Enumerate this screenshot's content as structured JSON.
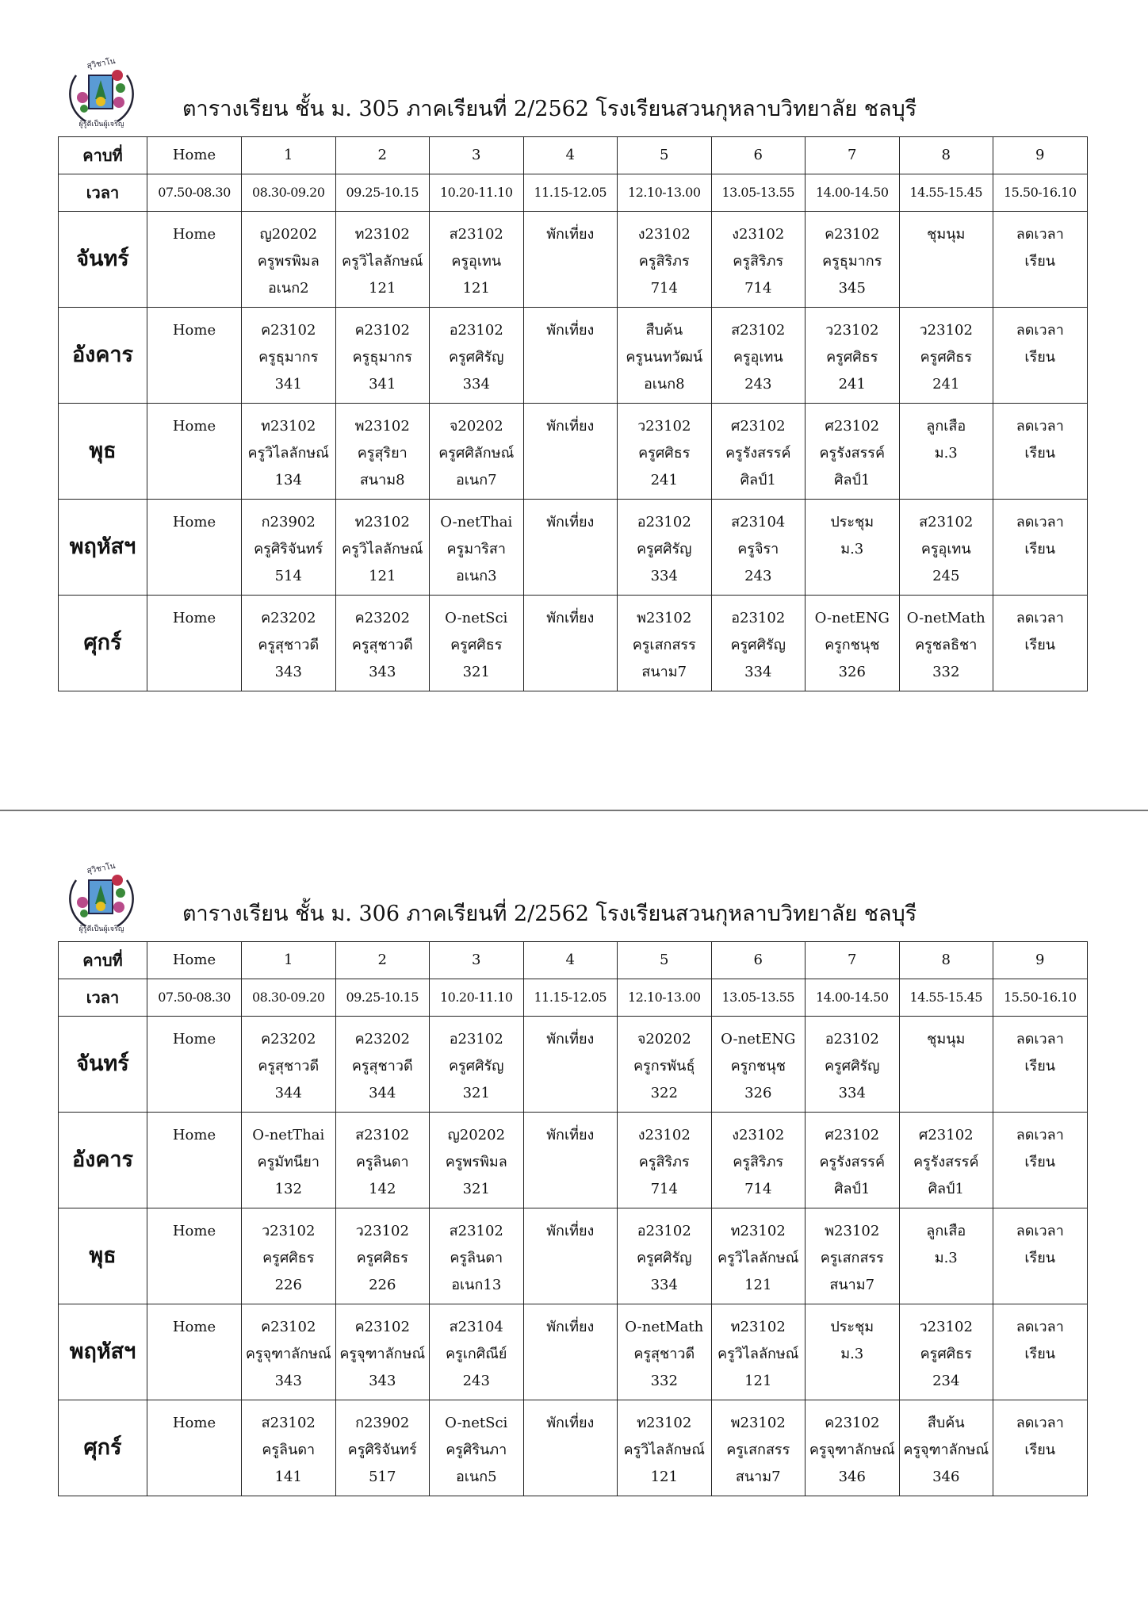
{
  "header_labels": {
    "period": "คาบที่",
    "time": "เวลา"
  },
  "periods": [
    "Home",
    "1",
    "2",
    "3",
    "4",
    "5",
    "6",
    "7",
    "8",
    "9"
  ],
  "times": [
    "07.50-08.30",
    "08.30-09.20",
    "09.25-10.15",
    "10.20-11.10",
    "11.15-12.05",
    "12.10-13.00",
    "13.05-13.55",
    "14.00-14.50",
    "14.55-15.45",
    "15.50-16.10"
  ],
  "logo_text": "สุวิชาโน ภวํ โหติ ผู้รู้ดีเป็นผู้เจริญ",
  "timetables": [
    {
      "title": "ตารางเรียน ชั้น ม. 305 ภาคเรียนที่ 2/2562 โรงเรียนสวนกุหลาบวิทยาลัย ชลบุรี",
      "days": [
        {
          "day": "จันทร์",
          "cells": [
            [
              "Home"
            ],
            [
              "ญ20202",
              "ครูพรพิมล",
              "อเนก2"
            ],
            [
              "ท23102",
              "ครูวิไลลักษณ์",
              "121"
            ],
            [
              "ส23102",
              "ครูอุเทน",
              "121"
            ],
            [
              "พักเที่ยง"
            ],
            [
              "ง23102",
              "ครูสิริภร",
              "714"
            ],
            [
              "ง23102",
              "ครูสิริภร",
              "714"
            ],
            [
              "ค23102",
              "ครูธุมากร",
              "345"
            ],
            [
              "ชุมนุม"
            ],
            [
              "ลดเวลา",
              "เรียน"
            ]
          ]
        },
        {
          "day": "อังคาร",
          "cells": [
            [
              "Home"
            ],
            [
              "ค23102",
              "ครูธุมากร",
              "341"
            ],
            [
              "ค23102",
              "ครูธุมากร",
              "341"
            ],
            [
              "อ23102",
              "ครูศศิรัญ",
              "334"
            ],
            [
              "พักเที่ยง"
            ],
            [
              "สืบค้น",
              "ครูนนทวัฒน์",
              "อเนก8"
            ],
            [
              "ส23102",
              "ครูอุเทน",
              "243"
            ],
            [
              "ว23102",
              "ครูศศิธร",
              "241"
            ],
            [
              "ว23102",
              "ครูศศิธร",
              "241"
            ],
            [
              "ลดเวลา",
              "เรียน"
            ]
          ]
        },
        {
          "day": "พุธ",
          "cells": [
            [
              "Home"
            ],
            [
              "ท23102",
              "ครูวิไลลักษณ์",
              "134"
            ],
            [
              "พ23102",
              "ครูสุริยา",
              "สนาม8"
            ],
            [
              "จ20202",
              "ครูศศิลักษณ์",
              "อเนก7"
            ],
            [
              "พักเที่ยง"
            ],
            [
              "ว23102",
              "ครูศศิธร",
              "241"
            ],
            [
              "ศ23102",
              "ครูรังสรรค์",
              "ศิลป์1"
            ],
            [
              "ศ23102",
              "ครูรังสรรค์",
              "ศิลป์1"
            ],
            [
              "ลูกเสือ",
              "ม.3"
            ],
            [
              "ลดเวลา",
              "เรียน"
            ]
          ]
        },
        {
          "day": "พฤหัสฯ",
          "cells": [
            [
              "Home"
            ],
            [
              "ก23902",
              "ครูศิริจันทร์",
              "514"
            ],
            [
              "ท23102",
              "ครูวิไลลักษณ์",
              "121"
            ],
            [
              "O-netThai",
              "ครูมาริสา",
              "อเนก3"
            ],
            [
              "พักเที่ยง"
            ],
            [
              "อ23102",
              "ครูศศิรัญ",
              "334"
            ],
            [
              "ส23104",
              "ครูจิรา",
              "243"
            ],
            [
              "ประชุม",
              "ม.3"
            ],
            [
              "ส23102",
              "ครูอุเทน",
              "245"
            ],
            [
              "ลดเวลา",
              "เรียน"
            ]
          ]
        },
        {
          "day": "ศุกร์",
          "cells": [
            [
              "Home"
            ],
            [
              "ค23202",
              "ครูสุชาวดี",
              "343"
            ],
            [
              "ค23202",
              "ครูสุชาวดี",
              "343"
            ],
            [
              "O-netSci",
              "ครูศศิธร",
              "321"
            ],
            [
              "พักเที่ยง"
            ],
            [
              "พ23102",
              "ครูเสกสรร",
              "สนาม7"
            ],
            [
              "อ23102",
              "ครูศศิรัญ",
              "334"
            ],
            [
              "O-netENG",
              "ครูกชนุช",
              "326"
            ],
            [
              "O-netMath",
              "ครูชลธิชา",
              "332"
            ],
            [
              "ลดเวลา",
              "เรียน"
            ]
          ]
        }
      ]
    },
    {
      "title": "ตารางเรียน ชั้น ม. 306 ภาคเรียนที่ 2/2562 โรงเรียนสวนกุหลาบวิทยาลัย ชลบุรี",
      "days": [
        {
          "day": "จันทร์",
          "cells": [
            [
              "Home"
            ],
            [
              "ค23202",
              "ครูสุชาวดี",
              "344"
            ],
            [
              "ค23202",
              "ครูสุชาวดี",
              "344"
            ],
            [
              "อ23102",
              "ครูศศิรัญ",
              "321"
            ],
            [
              "พักเที่ยง"
            ],
            [
              "จ20202",
              "ครูกรพันธุ์",
              "322"
            ],
            [
              "O-netENG",
              "ครูกชนุช",
              "326"
            ],
            [
              "อ23102",
              "ครูศศิรัญ",
              "334"
            ],
            [
              "ชุมนุม"
            ],
            [
              "ลดเวลา",
              "เรียน"
            ]
          ]
        },
        {
          "day": "อังคาร",
          "cells": [
            [
              "Home"
            ],
            [
              "O-netThai",
              "ครูมัทนียา",
              "132"
            ],
            [
              "ส23102",
              "ครูลินดา",
              "142"
            ],
            [
              "ญ20202",
              "ครูพรพิมล",
              "321"
            ],
            [
              "พักเที่ยง"
            ],
            [
              "ง23102",
              "ครูสิริภร",
              "714"
            ],
            [
              "ง23102",
              "ครูสิริภร",
              "714"
            ],
            [
              "ศ23102",
              "ครูรังสรรค์",
              "ศิลป์1"
            ],
            [
              "ศ23102",
              "ครูรังสรรค์",
              "ศิลป์1"
            ],
            [
              "ลดเวลา",
              "เรียน"
            ]
          ]
        },
        {
          "day": "พุธ",
          "cells": [
            [
              "Home"
            ],
            [
              "ว23102",
              "ครูศศิธร",
              "226"
            ],
            [
              "ว23102",
              "ครูศศิธร",
              "226"
            ],
            [
              "ส23102",
              "ครูลินดา",
              "อเนก13"
            ],
            [
              "พักเที่ยง"
            ],
            [
              "อ23102",
              "ครูศศิรัญ",
              "334"
            ],
            [
              "ท23102",
              "ครูวิไลลักษณ์",
              "121"
            ],
            [
              "พ23102",
              "ครูเสกสรร",
              "สนาม7"
            ],
            [
              "ลูกเสือ",
              "ม.3"
            ],
            [
              "ลดเวลา",
              "เรียน"
            ]
          ]
        },
        {
          "day": "พฤหัสฯ",
          "cells": [
            [
              "Home"
            ],
            [
              "ค23102",
              "ครูจุฑาลักษณ์",
              "343"
            ],
            [
              "ค23102",
              "ครูจุฑาลักษณ์",
              "343"
            ],
            [
              "ส23104",
              "ครูเกศิณีย์",
              "243"
            ],
            [
              "พักเที่ยง"
            ],
            [
              "O-netMath",
              "ครูสุชาวดี",
              "332"
            ],
            [
              "ท23102",
              "ครูวิไลลักษณ์",
              "121"
            ],
            [
              "ประชุม",
              "ม.3"
            ],
            [
              "ว23102",
              "ครูศศิธร",
              "234"
            ],
            [
              "ลดเวลา",
              "เรียน"
            ]
          ]
        },
        {
          "day": "ศุกร์",
          "cells": [
            [
              "Home"
            ],
            [
              "ส23102",
              "ครูลินดา",
              "141"
            ],
            [
              "ก23902",
              "ครูศิริจันทร์",
              "517"
            ],
            [
              "O-netSci",
              "ครูศิรินภา",
              "อเนก5"
            ],
            [
              "พักเที่ยง"
            ],
            [
              "ท23102",
              "ครูวิไลลักษณ์",
              "121"
            ],
            [
              "พ23102",
              "ครูเสกสรร",
              "สนาม7"
            ],
            [
              "ค23102",
              "ครูจุฑาลักษณ์",
              "346"
            ],
            [
              "สืบค้น",
              "ครูจุฑาลักษณ์",
              "346"
            ],
            [
              "ลดเวลา",
              "เรียน"
            ]
          ]
        }
      ]
    }
  ]
}
